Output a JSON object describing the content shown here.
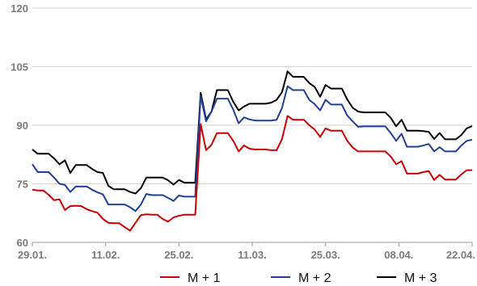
{
  "chart_data": {
    "type": "line",
    "title": "",
    "xlabel": "",
    "ylabel": "",
    "ylim": [
      60,
      120
    ],
    "yticks": [
      "120",
      "105",
      "90",
      "75",
      "60"
    ],
    "ytick_values": [
      120,
      105,
      90,
      75,
      60
    ],
    "xticks": [
      "29.01.",
      "11.02.",
      "25.02.",
      "11.03.",
      "25.03.",
      "08.04.",
      "22.04."
    ],
    "grid": true,
    "legend_position": "bottom",
    "colors": {
      "M + 1": "#cc0000",
      "M + 2": "#1f3f99",
      "M + 3": "#000000"
    },
    "series": [
      {
        "name": "M + 1",
        "values": [
          73.5,
          73.3,
          73.3,
          72.2,
          70.8,
          71.0,
          68.3,
          69.3,
          69.4,
          69.3,
          68.5,
          68.0,
          67.6,
          66.0,
          65.0,
          64.9,
          64.9,
          63.9,
          63.0,
          65.0,
          67.0,
          67.2,
          67.1,
          67.1,
          66.0,
          65.3,
          66.4,
          66.8,
          67.1,
          67.1,
          67.1,
          90.3,
          83.6,
          85.0,
          88.0,
          88.0,
          88.0,
          86.0,
          83.3,
          84.8,
          84.0,
          83.8,
          83.8,
          83.8,
          83.6,
          83.6,
          86.5,
          92.4,
          91.4,
          91.4,
          91.4,
          90.0,
          88.9,
          87.0,
          89.2,
          88.6,
          88.6,
          88.6,
          86.0,
          84.3,
          83.3,
          83.3,
          83.3,
          83.3,
          83.3,
          83.3,
          82.0,
          80.0,
          80.8,
          77.6,
          77.6,
          77.6,
          78.0,
          78.3,
          76.0,
          77.3,
          76.1,
          76.1,
          76.1,
          77.4,
          78.5,
          78.5
        ]
      },
      {
        "name": "M + 2",
        "values": [
          80.0,
          78.0,
          78.0,
          78.0,
          76.6,
          75.0,
          74.7,
          72.9,
          74.3,
          74.3,
          74.3,
          73.5,
          72.8,
          72.3,
          69.7,
          69.7,
          69.7,
          69.7,
          69.0,
          68.0,
          69.7,
          72.4,
          72.1,
          72.1,
          72.1,
          71.4,
          70.6,
          72.0,
          71.7,
          71.7,
          71.7,
          97.5,
          91.0,
          93.5,
          96.8,
          96.8,
          96.8,
          94.0,
          90.5,
          92.0,
          91.5,
          91.2,
          91.2,
          91.2,
          91.2,
          91.4,
          94.5,
          100.0,
          99.0,
          99.0,
          99.0,
          96.5,
          95.4,
          93.8,
          96.5,
          95.3,
          95.3,
          95.3,
          92.5,
          91.0,
          89.6,
          89.7,
          89.7,
          89.7,
          89.7,
          89.7,
          88.0,
          86.0,
          87.8,
          84.5,
          84.5,
          84.5,
          84.8,
          85.2,
          83.3,
          84.4,
          83.3,
          83.3,
          83.3,
          84.8,
          86.0,
          86.3
        ]
      },
      {
        "name": "M + 3",
        "values": [
          83.8,
          82.7,
          82.7,
          82.7,
          81.5,
          80.0,
          81.0,
          77.8,
          79.8,
          79.8,
          79.8,
          78.8,
          78.0,
          77.8,
          74.5,
          73.6,
          73.6,
          73.6,
          72.9,
          72.5,
          73.9,
          76.6,
          76.6,
          76.6,
          76.6,
          75.9,
          74.8,
          76.0,
          75.3,
          75.3,
          75.3,
          98.3,
          91.5,
          93.5,
          99.0,
          99.0,
          99.0,
          96.0,
          93.8,
          94.8,
          95.5,
          95.5,
          95.5,
          95.5,
          95.8,
          96.5,
          98.5,
          103.8,
          102.4,
          102.4,
          102.4,
          100.8,
          99.8,
          97.3,
          100.3,
          99.4,
          99.4,
          99.4,
          96.6,
          94.5,
          93.5,
          93.3,
          93.3,
          93.3,
          93.3,
          93.3,
          91.9,
          89.7,
          91.4,
          88.6,
          88.6,
          88.6,
          88.5,
          88.3,
          86.5,
          88.0,
          86.4,
          86.4,
          86.4,
          87.5,
          89.2,
          89.8
        ]
      }
    ]
  }
}
